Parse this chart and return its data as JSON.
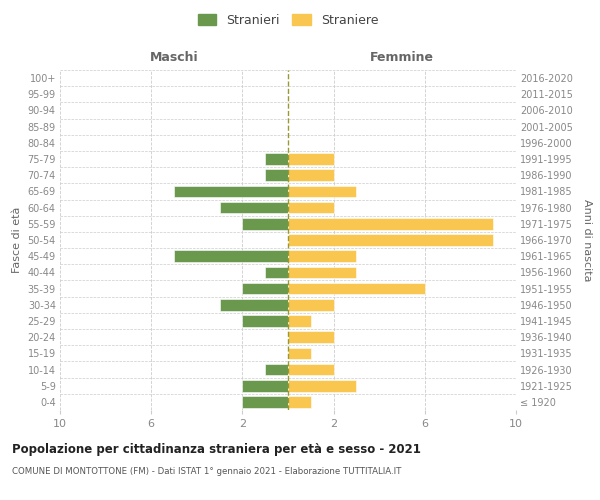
{
  "age_groups": [
    "100+",
    "95-99",
    "90-94",
    "85-89",
    "80-84",
    "75-79",
    "70-74",
    "65-69",
    "60-64",
    "55-59",
    "50-54",
    "45-49",
    "40-44",
    "35-39",
    "30-34",
    "25-29",
    "20-24",
    "15-19",
    "10-14",
    "5-9",
    "0-4"
  ],
  "birth_years": [
    "≤ 1920",
    "1921-1925",
    "1926-1930",
    "1931-1935",
    "1936-1940",
    "1941-1945",
    "1946-1950",
    "1951-1955",
    "1956-1960",
    "1961-1965",
    "1966-1970",
    "1971-1975",
    "1976-1980",
    "1981-1985",
    "1986-1990",
    "1991-1995",
    "1996-2000",
    "2001-2005",
    "2006-2010",
    "2011-2015",
    "2016-2020"
  ],
  "males": [
    0,
    0,
    0,
    0,
    0,
    1,
    1,
    5,
    3,
    2,
    0,
    5,
    1,
    2,
    3,
    2,
    0,
    0,
    1,
    2,
    2
  ],
  "females": [
    0,
    0,
    0,
    0,
    0,
    2,
    2,
    3,
    2,
    9,
    9,
    3,
    3,
    6,
    2,
    1,
    2,
    1,
    2,
    3,
    1
  ],
  "male_color": "#6a994e",
  "female_color": "#f9c74f",
  "background_color": "#ffffff",
  "grid_color": "#cccccc",
  "bar_height": 0.72,
  "xlim": 10,
  "title": "Popolazione per cittadinanza straniera per età e sesso - 2021",
  "subtitle": "COMUNE DI MONTOTTONE (FM) - Dati ISTAT 1° gennaio 2021 - Elaborazione TUTTITALIA.IT",
  "xlabel_left": "Maschi",
  "xlabel_right": "Femmine",
  "ylabel_left": "Fasce di età",
  "ylabel_right": "Anni di nascita",
  "legend_male": "Stranieri",
  "legend_female": "Straniere"
}
